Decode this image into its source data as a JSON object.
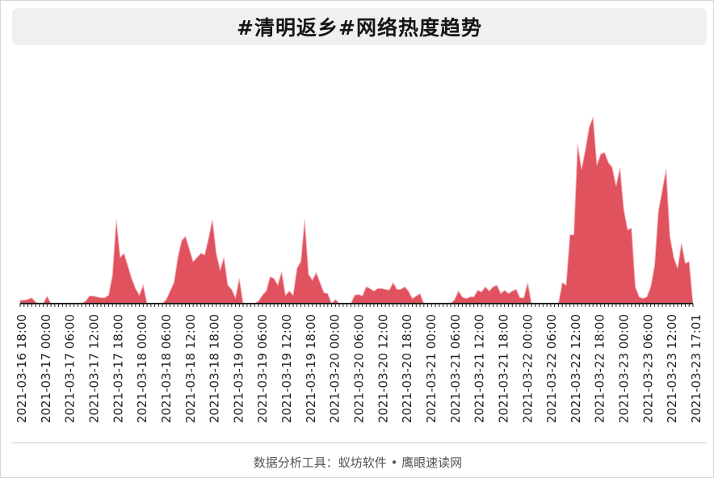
{
  "title": "#清明返乡#网络热度趋势",
  "footer": "数据分析工具：蚁坊软件 • 鹰眼速读网",
  "colors": {
    "area": "#e0525e",
    "axis": "#222222",
    "title_bg": "#f0f0f0"
  },
  "chart_data": {
    "type": "area",
    "title": "#清明返乡#网络热度趋势",
    "xlabel": "",
    "ylabel": "",
    "grid": false,
    "legend": "none",
    "ylim": [
      0,
      250
    ],
    "tick_labels": [
      "2021-03-16 18:00",
      "2021-03-17 00:00",
      "2021-03-17 06:00",
      "2021-03-17 12:00",
      "2021-03-17 18:00",
      "2021-03-18 00:00",
      "2021-03-18 06:00",
      "2021-03-18 12:00",
      "2021-03-18 18:00",
      "2021-03-19 00:00",
      "2021-03-19 06:00",
      "2021-03-19 12:00",
      "2021-03-19 18:00",
      "2021-03-20 00:00",
      "2021-03-20 06:00",
      "2021-03-20 12:00",
      "2021-03-20 18:00",
      "2021-03-21 00:00",
      "2021-03-21 06:00",
      "2021-03-21 12:00",
      "2021-03-21 18:00",
      "2021-03-22 00:00",
      "2021-03-22 06:00",
      "2021-03-22 12:00",
      "2021-03-22 18:00",
      "2021-03-23 00:00",
      "2021-03-23 06:00",
      "2021-03-23 12:00",
      "2021-03-23 17:01"
    ],
    "series": [
      {
        "values": [
          4,
          4,
          5,
          7,
          2,
          0,
          0,
          9,
          0,
          0,
          0,
          0,
          0,
          0,
          0,
          0,
          0,
          3,
          9,
          9,
          8,
          7,
          7,
          10,
          34,
          100,
          55,
          60,
          45,
          30,
          18,
          10,
          22,
          0,
          0,
          0,
          0,
          0,
          5,
          15,
          25,
          55,
          75,
          80,
          65,
          50,
          55,
          60,
          58,
          78,
          100,
          60,
          40,
          55,
          22,
          17,
          7,
          30,
          0,
          0,
          0,
          0,
          3,
          10,
          15,
          32,
          30,
          22,
          38,
          10,
          15,
          10,
          42,
          50,
          100,
          35,
          28,
          37,
          25,
          13,
          12,
          0,
          5,
          0,
          0,
          0,
          0,
          10,
          11,
          9,
          20,
          18,
          15,
          18,
          18,
          17,
          16,
          25,
          17,
          17,
          20,
          15,
          6,
          9,
          12,
          0,
          0,
          0,
          0,
          0,
          0,
          0,
          0,
          5,
          15,
          8,
          6,
          8,
          8,
          16,
          14,
          20,
          15,
          20,
          22,
          12,
          16,
          12,
          15,
          17,
          7,
          7,
          25,
          0,
          0,
          0,
          0,
          0,
          0,
          0,
          0,
          25,
          22,
          82,
          82,
          190,
          160,
          183,
          210,
          222,
          165,
          178,
          180,
          168,
          162,
          140,
          162,
          112,
          88,
          90,
          20,
          8,
          6,
          8,
          20,
          45,
          110,
          135,
          160,
          80,
          55,
          42,
          72,
          48,
          50,
          0
        ]
      }
    ]
  }
}
